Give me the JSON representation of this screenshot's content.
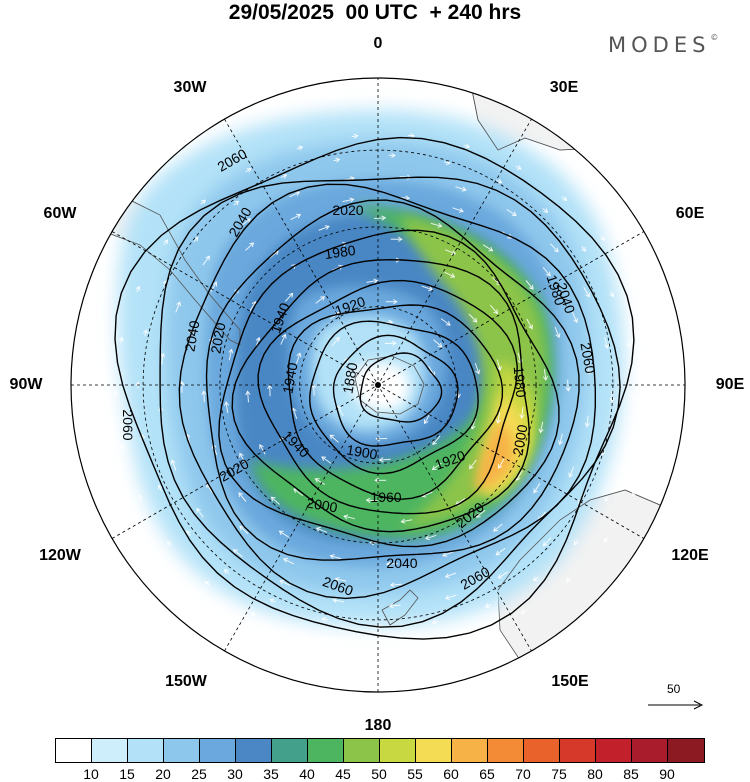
{
  "title": "29/05/2025  00 UTC  + 240 hrs",
  "brand": "MODES",
  "brand_mark": "©",
  "meridian_labels": [
    "0",
    "30E",
    "60E",
    "90E",
    "120E",
    "150E",
    "180",
    "150W",
    "120W",
    "90W",
    "60W",
    "30W"
  ],
  "contour_labels": [
    "2060",
    "2040",
    "2020",
    "2000",
    "1980",
    "1960",
    "1940",
    "1920",
    "1900",
    "1880"
  ],
  "vector_scale": {
    "label": "50"
  },
  "colorbar": {
    "ticks": [
      "10",
      "15",
      "20",
      "25",
      "30",
      "35",
      "40",
      "45",
      "50",
      "55",
      "60",
      "65",
      "70",
      "75",
      "80",
      "85",
      "90"
    ],
    "colors": [
      "#ffffff",
      "#cfeefc",
      "#b3e2f8",
      "#8ec7ec",
      "#6aa8dd",
      "#4a87c4",
      "#43a08a",
      "#4db560",
      "#8cc44a",
      "#c8d840",
      "#f5dc55",
      "#f6b246",
      "#f38b36",
      "#e9622c",
      "#d6392a",
      "#c2212b",
      "#a81c2b",
      "#8c1a22"
    ]
  },
  "map_colors": {
    "land": "#f2f2f2",
    "coast": "#555555",
    "contour": "#000000",
    "grid": "#000000",
    "vector": "#ffffff"
  }
}
